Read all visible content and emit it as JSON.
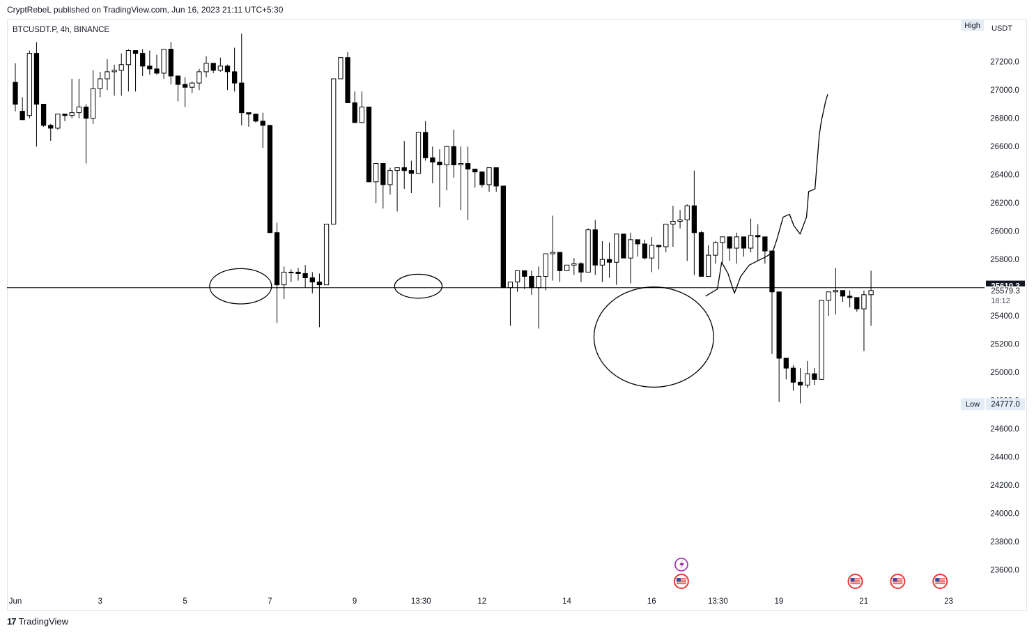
{
  "header": {
    "publish_line": "CryptRebeL published on TradingView.com, Jun 16, 2023 21:11 UTC+5:30"
  },
  "footer": {
    "brand": "TradingView",
    "logo_glyph": "17"
  },
  "chart_data": {
    "type": "candlestick",
    "symbol_line": "BTCUSDT.P, 4h, BINANCE",
    "currency": "USDT",
    "ylim": [
      23450,
      27500
    ],
    "y_ticks": [
      23600,
      23800,
      24000,
      24200,
      24400,
      24600,
      24800,
      25000,
      25200,
      25400,
      25600,
      25800,
      26000,
      26200,
      26400,
      26600,
      26800,
      27000,
      27200
    ],
    "y_tick_labels": [
      "23600.0",
      "23800.0",
      "24000.0",
      "24200.0",
      "24400.0",
      "24600.0",
      "24800.0",
      "25000.0",
      "25200.0",
      "25400.0",
      "25600.0",
      "25800.0",
      "26000.0",
      "26200.0",
      "26400.0",
      "26600.0",
      "26800.0",
      "27000.0",
      "27200.0"
    ],
    "x_start_day": 1,
    "x_end_day": 23.6,
    "x_ticks": [
      {
        "day": 1.0,
        "label": "Jun"
      },
      {
        "day": 3.0,
        "label": "3"
      },
      {
        "day": 5.0,
        "label": "5"
      },
      {
        "day": 7.0,
        "label": "7"
      },
      {
        "day": 9.0,
        "label": "9"
      },
      {
        "day": 10.5625,
        "label": "13:30"
      },
      {
        "day": 12.0,
        "label": "12"
      },
      {
        "day": 14.0,
        "label": "14"
      },
      {
        "day": 16.0,
        "label": "16"
      },
      {
        "day": 17.5625,
        "label": "13:30"
      },
      {
        "day": 19.0,
        "label": "19"
      },
      {
        "day": 21.0,
        "label": "21"
      },
      {
        "day": 23.0,
        "label": "23"
      }
    ],
    "candle_interval_days": 0.1667,
    "candles": [
      [
        27055,
        27190,
        26900,
        26850
      ],
      [
        26850,
        26950,
        26790,
        26820
      ],
      [
        26820,
        27280,
        27260,
        26800
      ],
      [
        27260,
        27340,
        26900,
        26600
      ],
      [
        26900,
        26900,
        26750,
        26740
      ],
      [
        26750,
        26760,
        26730,
        26640
      ],
      [
        26730,
        26830,
        26830,
        26720
      ],
      [
        26830,
        26830,
        26820,
        26780
      ],
      [
        26820,
        27080,
        26840,
        26800
      ],
      [
        26840,
        27080,
        26880,
        26800
      ],
      [
        26880,
        26900,
        26800,
        26480
      ],
      [
        26800,
        27140,
        27010,
        26760
      ],
      [
        27010,
        27130,
        27080,
        26950
      ],
      [
        27080,
        27220,
        27130,
        27000
      ],
      [
        27130,
        27180,
        27140,
        26960
      ],
      [
        27140,
        27260,
        27180,
        26960
      ],
      [
        27180,
        27290,
        27280,
        26990
      ],
      [
        27280,
        27260,
        27260,
        26990
      ],
      [
        27260,
        27290,
        27170,
        27100
      ],
      [
        27170,
        27280,
        27150,
        27110
      ],
      [
        27150,
        27250,
        27120,
        27110
      ],
      [
        27120,
        27290,
        27290,
        27080
      ],
      [
        27290,
        27340,
        27100,
        27040
      ],
      [
        27100,
        27100,
        27040,
        26920
      ],
      [
        27040,
        27090,
        27020,
        26880
      ],
      [
        27020,
        27060,
        27050,
        26980
      ],
      [
        27050,
        27150,
        27130,
        27000
      ],
      [
        27130,
        27240,
        27190,
        27090
      ],
      [
        27190,
        27180,
        27140,
        27120
      ],
      [
        27140,
        27230,
        27170,
        27130
      ],
      [
        27170,
        27180,
        27130,
        27000
      ],
      [
        27130,
        27300,
        27050,
        26990
      ],
      [
        27050,
        27400,
        26840,
        26750
      ],
      [
        26840,
        26810,
        26830,
        26740
      ],
      [
        26830,
        26810,
        26780,
        26770
      ],
      [
        26780,
        26840,
        26750,
        26590
      ],
      [
        26750,
        26750,
        25990,
        25990
      ],
      [
        25990,
        26060,
        25620,
        25350
      ],
      [
        25620,
        25750,
        25710,
        25520
      ],
      [
        25710,
        25730,
        25710,
        25640
      ],
      [
        25710,
        25740,
        25700,
        25650
      ],
      [
        25700,
        25760,
        25670,
        25600
      ],
      [
        25670,
        25710,
        25640,
        25560
      ],
      [
        25640,
        25700,
        25620,
        25320
      ],
      [
        25620,
        25650,
        26050,
        25620
      ],
      [
        26050,
        27080,
        27080,
        26050
      ],
      [
        27080,
        27220,
        27230,
        27080
      ],
      [
        27230,
        27270,
        26910,
        26990
      ],
      [
        26910,
        26990,
        26770,
        26800
      ],
      [
        26770,
        26990,
        26880,
        26830
      ],
      [
        26880,
        26880,
        26350,
        26350
      ],
      [
        26350,
        26480,
        26480,
        26200
      ],
      [
        26480,
        26440,
        26330,
        26160
      ],
      [
        26330,
        26450,
        26430,
        26260
      ],
      [
        26430,
        26340,
        26450,
        26140
      ],
      [
        26450,
        26640,
        26430,
        26300
      ],
      [
        26430,
        26500,
        26410,
        26270
      ],
      [
        26410,
        26540,
        26700,
        26410
      ],
      [
        26700,
        26780,
        26520,
        26500
      ],
      [
        26520,
        26600,
        26490,
        26340
      ],
      [
        26490,
        26580,
        26470,
        26170
      ],
      [
        26470,
        26600,
        26600,
        26290
      ],
      [
        26600,
        26720,
        26470,
        26380
      ],
      [
        26470,
        26600,
        26480,
        26150
      ],
      [
        26480,
        26600,
        26440,
        26080
      ],
      [
        26440,
        26420,
        26420,
        26310
      ],
      [
        26420,
        26390,
        26330,
        26310
      ],
      [
        26330,
        26440,
        26450,
        26280
      ],
      [
        26450,
        26390,
        26320,
        26280
      ],
      [
        26320,
        26300,
        25600,
        25640
      ],
      [
        25600,
        25610,
        25640,
        25330
      ],
      [
        25640,
        25650,
        25720,
        25570
      ],
      [
        25720,
        25650,
        25680,
        25590
      ],
      [
        25680,
        25720,
        25600,
        25550
      ],
      [
        25600,
        25750,
        25680,
        25310
      ],
      [
        25680,
        25650,
        25840,
        25580
      ],
      [
        25840,
        26110,
        25850,
        25650
      ],
      [
        25850,
        25710,
        25720,
        25640
      ],
      [
        25720,
        25730,
        25760,
        25720
      ],
      [
        25760,
        25810,
        25770,
        25690
      ],
      [
        25770,
        25780,
        25710,
        25640
      ],
      [
        25710,
        26020,
        26010,
        25730
      ],
      [
        26010,
        26080,
        25760,
        25690
      ],
      [
        25760,
        25930,
        25800,
        25640
      ],
      [
        25800,
        25920,
        25780,
        25670
      ],
      [
        25780,
        25960,
        25980,
        25620
      ],
      [
        25980,
        25880,
        25810,
        25860
      ],
      [
        25810,
        25990,
        25940,
        25630
      ],
      [
        25940,
        25880,
        25910,
        25820
      ],
      [
        25910,
        25940,
        25810,
        25800
      ],
      [
        25810,
        25960,
        25900,
        25710
      ],
      [
        25900,
        25850,
        25890,
        25730
      ],
      [
        25890,
        26000,
        26050,
        25850
      ],
      [
        26050,
        26180,
        26070,
        25890
      ],
      [
        26070,
        26150,
        26080,
        26020
      ],
      [
        26080,
        26190,
        26180,
        25790
      ],
      [
        26180,
        26430,
        25990,
        25690
      ],
      [
        25990,
        26000,
        25680,
        25700
      ],
      [
        25680,
        25900,
        25830,
        25700
      ],
      [
        25830,
        25930,
        25920,
        25770
      ],
      [
        25920,
        25960,
        25960,
        25780
      ],
      [
        25960,
        25960,
        25880,
        25790
      ],
      [
        25880,
        25990,
        25960,
        25770
      ],
      [
        25960,
        25920,
        25880,
        25820
      ],
      [
        25880,
        26090,
        25970,
        25850
      ],
      [
        25970,
        26050,
        25960,
        25790
      ],
      [
        25960,
        25960,
        25860,
        25770
      ],
      [
        25860,
        25860,
        25570,
        25130
      ],
      [
        25570,
        25110,
        25100,
        24790
      ],
      [
        25100,
        25080,
        25030,
        24950
      ],
      [
        25030,
        25050,
        24930,
        24870
      ],
      [
        24930,
        25030,
        24910,
        24780
      ],
      [
        24910,
        25080,
        24990,
        24890
      ],
      [
        24990,
        25030,
        24950,
        24910
      ],
      [
        24950,
        25200,
        25510,
        24960
      ],
      [
        25510,
        25560,
        25570,
        25400
      ],
      [
        25570,
        25740,
        25580,
        25410
      ],
      [
        25580,
        25560,
        25540,
        25500
      ],
      [
        25540,
        25580,
        25530,
        25460
      ],
      [
        25530,
        25510,
        25450,
        25430
      ],
      [
        25450,
        25580,
        25550,
        25150
      ],
      [
        25550,
        25720,
        25579,
        25330
      ]
    ],
    "current_price": {
      "value": 25610.3,
      "label": "25610.3"
    },
    "last_price": {
      "value": 25579.3,
      "label": "25579.3",
      "countdown": "18:12"
    },
    "high_badge": {
      "text": "High",
      "label": "USDT"
    },
    "low_badge": {
      "text": "Low",
      "value": 24777.0,
      "label": "24777.0"
    },
    "horizontal_line": {
      "value": 25600
    },
    "annotations": {
      "ellipses": [
        {
          "center_day": 6.31,
          "center_value": 25610,
          "rx_days": 0.73,
          "ry_value": 125
        },
        {
          "center_day": 10.5,
          "center_value": 25610,
          "rx_days": 0.56,
          "ry_value": 85
        },
        {
          "center_day": 16.05,
          "center_value": 25250,
          "rx_days": 1.41,
          "ry_value": 355
        }
      ],
      "projection_path": [
        [
          17.27,
          25540
        ],
        [
          17.55,
          25590
        ],
        [
          17.65,
          25780
        ],
        [
          17.8,
          25700
        ],
        [
          17.95,
          25560
        ],
        [
          18.1,
          25680
        ],
        [
          18.3,
          25760
        ],
        [
          18.5,
          25790
        ],
        [
          18.7,
          25820
        ],
        [
          18.85,
          25850
        ],
        [
          18.95,
          25940
        ],
        [
          19.1,
          26100
        ],
        [
          19.25,
          26120
        ],
        [
          19.35,
          26040
        ],
        [
          19.5,
          25980
        ],
        [
          19.65,
          26100
        ],
        [
          19.7,
          26280
        ],
        [
          19.85,
          26300
        ],
        [
          19.95,
          26680
        ],
        [
          20.0,
          26780
        ],
        [
          20.1,
          26920
        ],
        [
          20.15,
          26970
        ]
      ]
    },
    "event_icons": [
      {
        "day": 16.7,
        "kind": "bolt"
      },
      {
        "day": 16.7,
        "kind": "us-flag"
      },
      {
        "day": 20.8,
        "kind": "us-flag"
      },
      {
        "day": 21.8,
        "kind": "us-flag"
      },
      {
        "day": 22.8,
        "kind": "us-flag"
      }
    ]
  }
}
